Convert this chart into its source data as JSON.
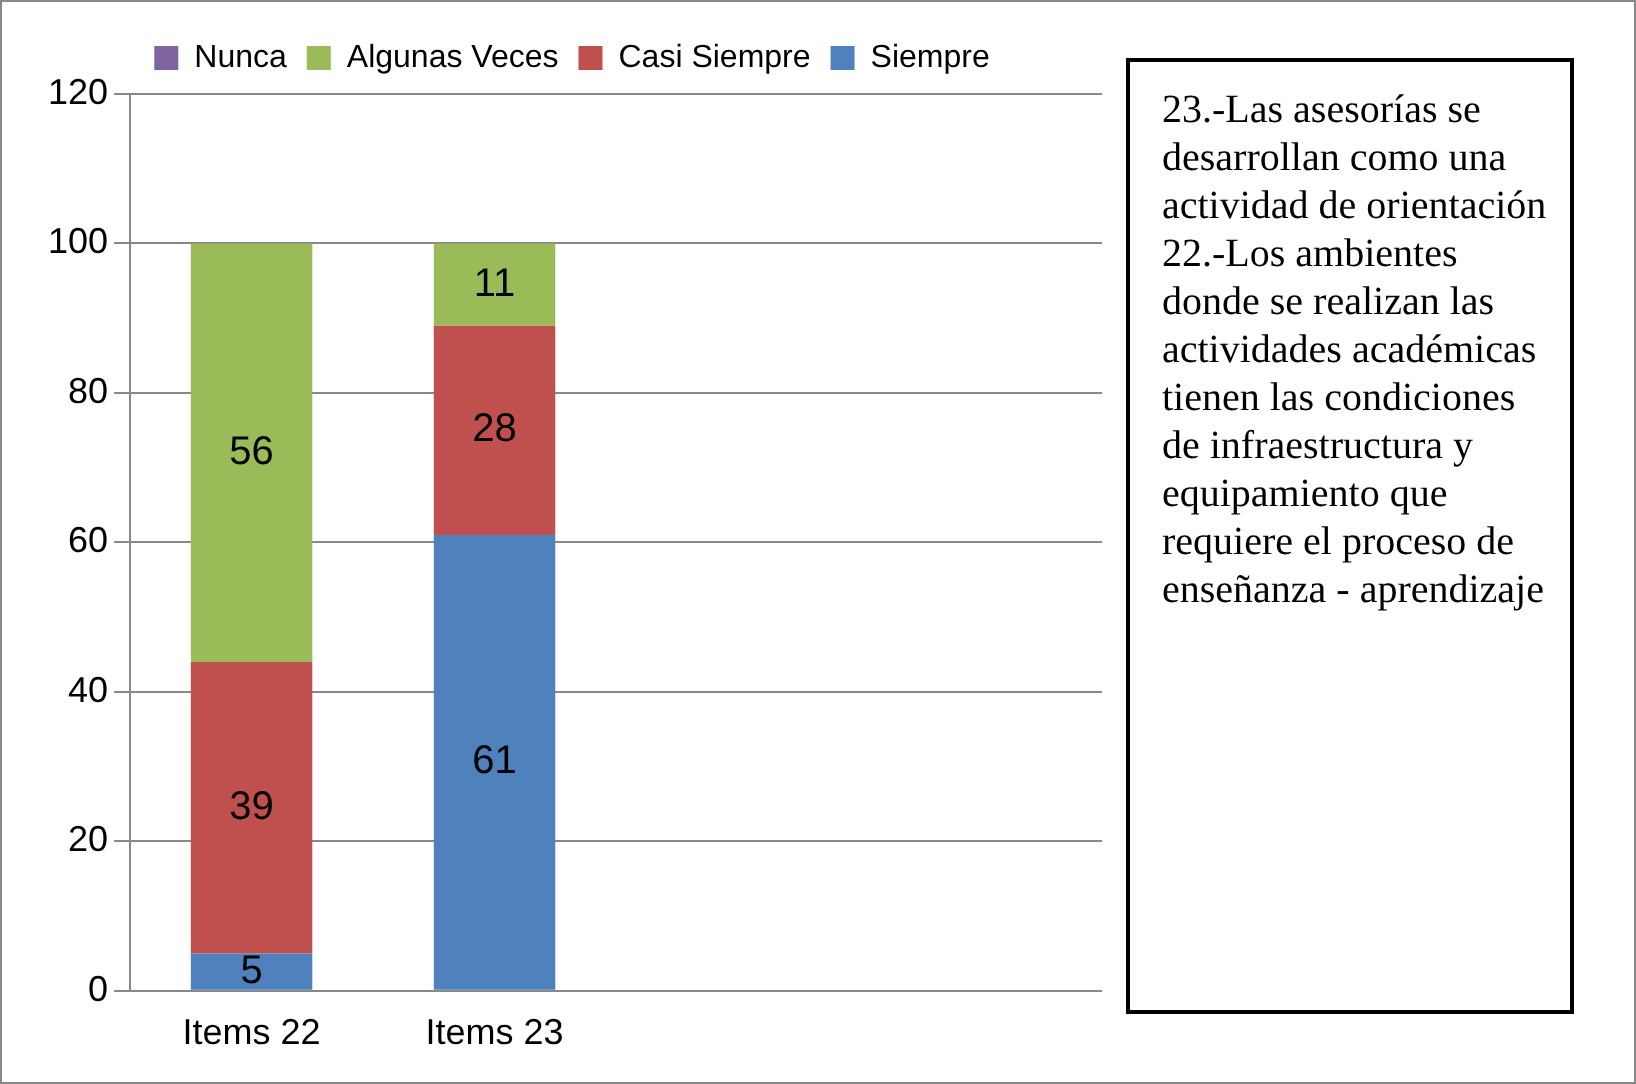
{
  "chart_data": {
    "type": "bar",
    "stacked": true,
    "categories": [
      "Items 22",
      "Items 23",
      null,
      null
    ],
    "series": [
      {
        "name": "Siempre",
        "color": "#4f81bd",
        "values": [
          5,
          61,
          null,
          null
        ],
        "value_labels": [
          "5",
          "61",
          null,
          null
        ]
      },
      {
        "name": "Casi Siempre",
        "color": "#c0504d",
        "values": [
          39,
          28,
          null,
          null
        ],
        "value_labels": [
          "39",
          "28",
          null,
          null
        ]
      },
      {
        "name": "Algunas Veces",
        "color": "#9bbb59",
        "values": [
          56,
          11,
          null,
          null
        ],
        "value_labels": [
          "56",
          "11",
          null,
          null
        ]
      },
      {
        "name": "Nunca",
        "color": "#8064a2",
        "values": [
          0,
          0,
          null,
          null
        ],
        "value_labels": [
          null,
          null,
          null,
          null
        ]
      }
    ],
    "ylim": [
      0,
      120
    ],
    "yticks": [
      0,
      20,
      40,
      60,
      80,
      100,
      120
    ],
    "grid": "y",
    "legend": "top",
    "annotations": [
      "23.-Las asesorías se desarrollan como una actividad de orientación 22.-Los ambientes donde se realizan las actividades académicas tienen las condiciones de infraestructura y equipamiento que requiere el proceso de enseñanza - aprendizaje"
    ]
  }
}
